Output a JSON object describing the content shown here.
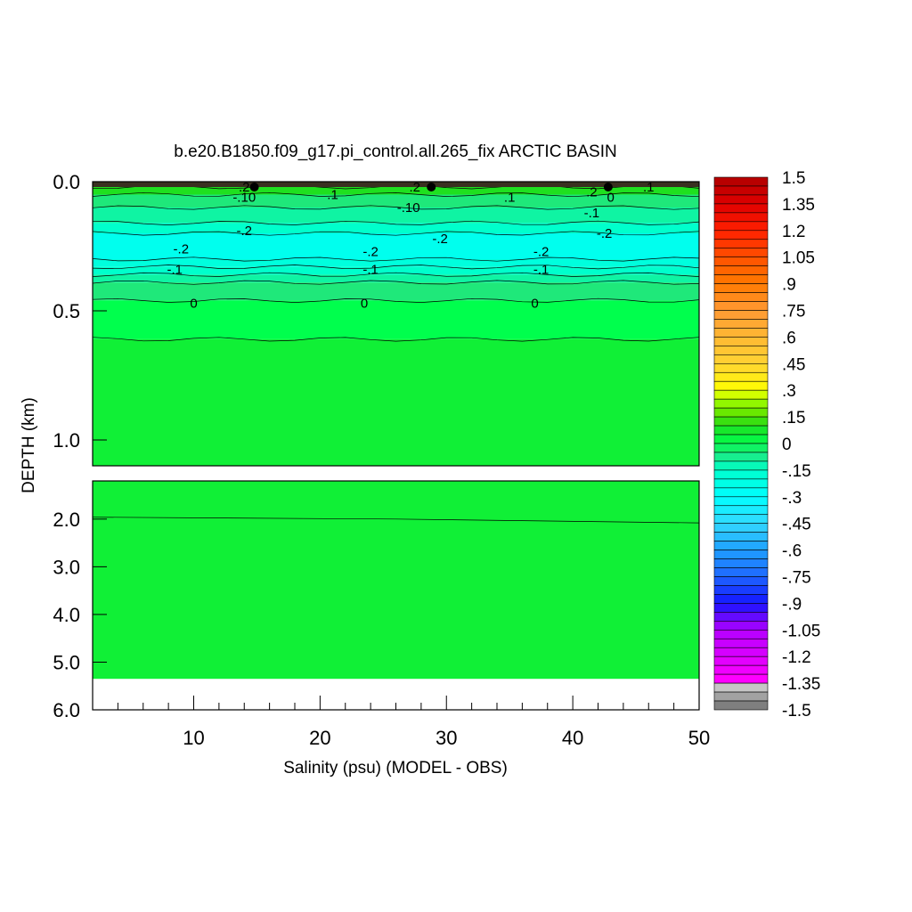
{
  "chart_data": {
    "type": "heatmap",
    "title": "b.e20.B1850.f09_g17.pi_control.all.265_fix ARCTIC BASIN",
    "xlabel": "Salinity (psu) (MODEL - OBS)",
    "ylabel": "DEPTH (km)",
    "xlim": [
      2,
      50
    ],
    "x_ticks": [
      "10",
      "20",
      "30",
      "40",
      "50"
    ],
    "upper_panel": {
      "ylim": [
        0.0,
        1.1
      ],
      "y_ticks": [
        "0.0",
        "0.5",
        "1.0"
      ],
      "y_tick_values": [
        0.0,
        0.5,
        1.0
      ]
    },
    "lower_panel": {
      "ylim": [
        1.2,
        6.0
      ],
      "y_ticks": [
        "2.0",
        "3.0",
        "4.0",
        "5.0",
        "6.0"
      ],
      "y_tick_values": [
        2.0,
        3.0,
        4.0,
        5.0,
        6.0
      ],
      "data_bottom_depth": 5.35
    },
    "layers": [
      {
        "top": 0.0,
        "value": 0.4
      },
      {
        "top": 0.02,
        "value": 0.1
      },
      {
        "top": 0.05,
        "value": -0.05
      },
      {
        "top": 0.1,
        "value": -0.1
      },
      {
        "top": 0.16,
        "value": -0.15
      },
      {
        "top": 0.2,
        "value": -0.25
      },
      {
        "top": 0.3,
        "value": -0.2
      },
      {
        "top": 0.33,
        "value": -0.15
      },
      {
        "top": 0.36,
        "value": -0.1
      },
      {
        "top": 0.39,
        "value": -0.05
      },
      {
        "top": 0.46,
        "value": 0.0
      },
      {
        "top": 0.61,
        "value": 0.05
      }
    ],
    "contour_labels": [
      {
        "text": ".2",
        "x": 14.0,
        "y": 0.02
      },
      {
        "text": "-.10",
        "x": 14.0,
        "y": 0.06
      },
      {
        "text": ".2",
        "x": 27.5,
        "y": 0.02
      },
      {
        "text": "-.10",
        "x": 27.0,
        "y": 0.1
      },
      {
        "text": ".2",
        "x": 41.5,
        "y": 0.04
      },
      {
        "text": "0",
        "x": 43.0,
        "y": 0.06
      },
      {
        "text": ".1",
        "x": 46.0,
        "y": 0.02
      },
      {
        "text": ".1",
        "x": 21.0,
        "y": 0.05
      },
      {
        "text": ".1",
        "x": 35.0,
        "y": 0.06
      },
      {
        "text": "-.1",
        "x": 41.5,
        "y": 0.12
      },
      {
        "text": "-.2",
        "x": 14.0,
        "y": 0.19
      },
      {
        "text": "-.2",
        "x": 29.5,
        "y": 0.22
      },
      {
        "text": "-.2",
        "x": 42.5,
        "y": 0.2
      },
      {
        "text": "-.2",
        "x": 9.0,
        "y": 0.26
      },
      {
        "text": "-.2",
        "x": 24.0,
        "y": 0.27
      },
      {
        "text": "-.2",
        "x": 37.5,
        "y": 0.27
      },
      {
        "text": "-.1",
        "x": 8.5,
        "y": 0.34
      },
      {
        "text": "-.1",
        "x": 24.0,
        "y": 0.34
      },
      {
        "text": "-.1",
        "x": 37.5,
        "y": 0.34
      },
      {
        "text": "0",
        "x": 10.0,
        "y": 0.47
      },
      {
        "text": "0",
        "x": 23.5,
        "y": 0.47
      },
      {
        "text": "0",
        "x": 37.0,
        "y": 0.47
      }
    ],
    "colorbar": {
      "min": -1.5,
      "max": 1.5,
      "step": 0.05,
      "labels": [
        "1.5",
        "1.35",
        "1.2",
        "1.05",
        ".9",
        ".75",
        ".6",
        ".45",
        ".3",
        ".15",
        "0",
        "-.15",
        "-.3",
        "-.45",
        "-.6",
        "-.75",
        "-.9",
        "-1.05",
        "-1.2",
        "-1.35",
        "-1.5"
      ]
    }
  }
}
